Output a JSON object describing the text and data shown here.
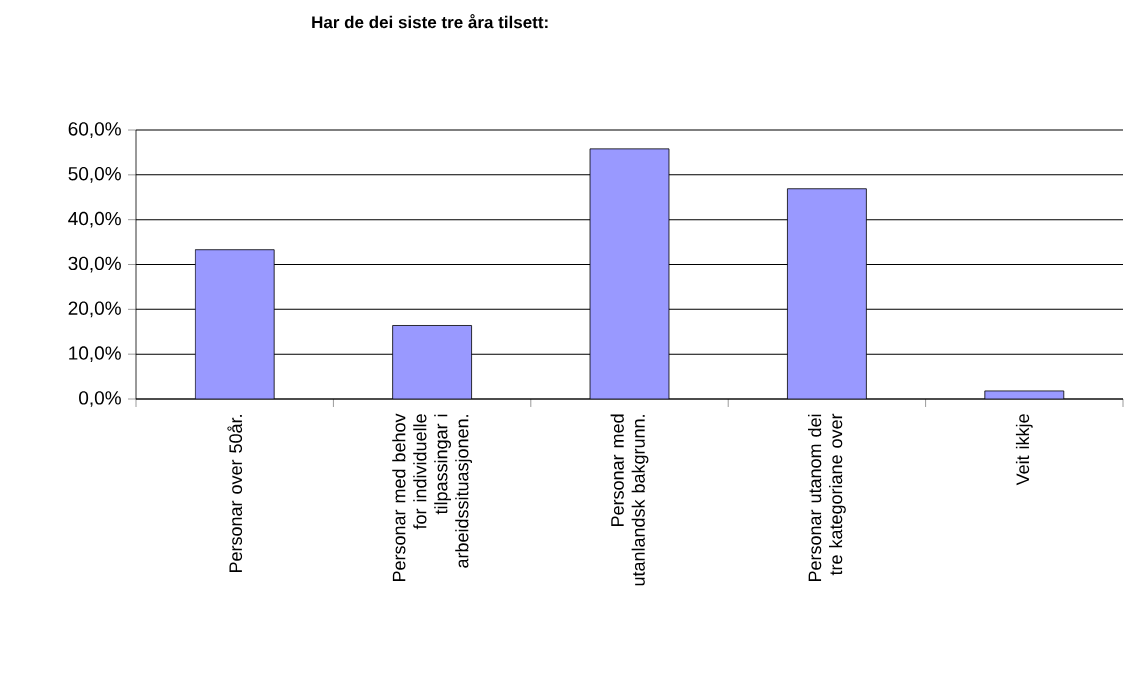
{
  "chart_data": {
    "type": "bar",
    "title": "Har de dei siste tre åra tilsett:",
    "categories": [
      "Personar over 50år.",
      "Personar med behov for individuelle tilpassingar i arbeidssituasjonen.",
      "Personar med utanlandsk bakgrunn.",
      "Personar utanom dei tre kategoriane over",
      "Veit ikkje"
    ],
    "values": [
      33.3,
      16.4,
      55.8,
      46.9,
      1.8
    ],
    "color": "#9999ff",
    "ylim": [
      0,
      60
    ],
    "yticks": [
      {
        "value": 0,
        "label": "0,0%"
      },
      {
        "value": 10,
        "label": "10,0%"
      },
      {
        "value": 20,
        "label": "20,0%"
      },
      {
        "value": 30,
        "label": "30,0%"
      },
      {
        "value": 40,
        "label": "40,0%"
      },
      {
        "value": 50,
        "label": "50,0%"
      },
      {
        "value": 60,
        "label": "60,0%"
      }
    ],
    "grid": "y"
  }
}
